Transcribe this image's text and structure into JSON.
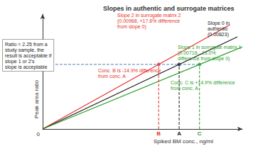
{
  "chart_data": {
    "type": "line",
    "title": "Slopes in authentic and surrogate matrices",
    "x_label": "Spiked BM conc., ng/ml",
    "y_label": "Peak area ratio",
    "origin_label": "0",
    "xlim": [
      0,
      400
    ],
    "ylim": [
      0,
      4
    ],
    "tick_labels": false,
    "grid": false,
    "series": [
      {
        "color": "#e8302a",
        "x": [
          0,
          375
        ],
        "values": [
          0,
          3.63
        ]
      },
      {
        "color": "#1a1a1a",
        "x": [
          0,
          390
        ],
        "values": [
          0,
          3.21
        ]
      },
      {
        "color": "#2ca02c",
        "x": [
          0,
          400
        ],
        "values": [
          0,
          2.86
        ]
      }
    ],
    "reference_line": {
      "y": 2.25,
      "color": "#4f81bd",
      "line_style": "dashed"
    },
    "concentrations": [
      {
        "label": "B",
        "value": 232.4,
        "color": "#e8302a"
      },
      {
        "label": "A",
        "value": 273.4,
        "color": "#1a1a1a"
      },
      {
        "label": "C",
        "value": 314.2,
        "color": "#2ca02c"
      }
    ],
    "annotations": [
      {
        "text": "Slope 2 in surrogate matrix 2\n(0.00968, +17.6% difference\nfrom slope 0)",
        "color": "#e8302a"
      },
      {
        "text": "Slope 0 in\nauthentic\n(0.00823)",
        "color": "#1a1a1a"
      },
      {
        "text": "Slope 1 in surrogate matrix 1\n(0.00716, -13.0%\ndifference from slope 0)",
        "color": "#2ca02c"
      },
      {
        "text": "Ratio = 2.25 from a\nstudy sample, the\nresult is acceptable if\nslope 1 or 2's\nslope is acceptable",
        "color": "#1a1a1a"
      },
      {
        "text": "Conc. B is -14.9% difference\nfrom conc. A",
        "color": "#e8302a"
      },
      {
        "text": "Conc. C is +14.9% difference\nfrom conc. A",
        "color": "#2ca02c"
      }
    ]
  }
}
